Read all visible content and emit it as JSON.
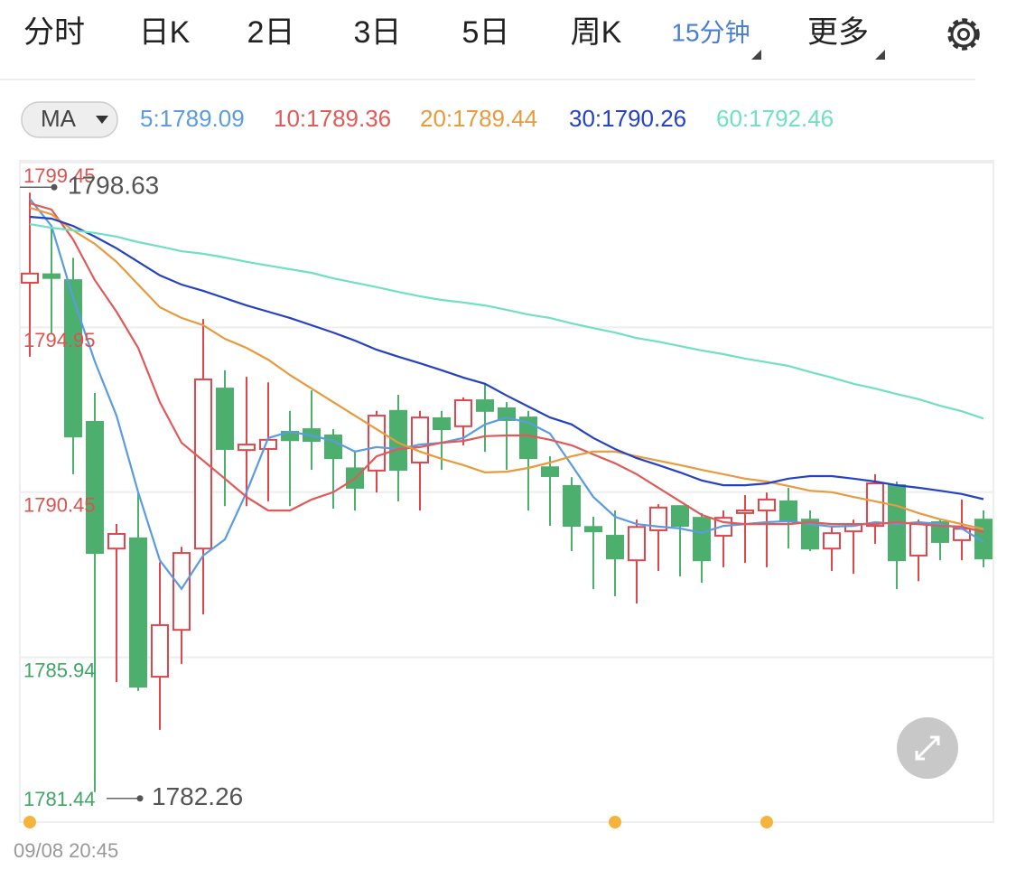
{
  "tabs": [
    "分时",
    "日K",
    "2日",
    "3日",
    "5日",
    "周K",
    "15分钟",
    "更多"
  ],
  "active_tab": 6,
  "indicator": "MA",
  "chart_data": {
    "type": "candlestick",
    "ylim": [
      1781.44,
      1799.45
    ],
    "yticks": [
      1799.45,
      1794.95,
      1790.45,
      1785.94,
      1781.44
    ],
    "ytick_colors": [
      "#d9534f",
      "#d9534f",
      "#d9534f",
      "#3fa564",
      "#3fa564"
    ],
    "grid": true,
    "up_color": "#e0464c",
    "down_color": "#4caf6e",
    "open": [
      1796.17,
      1796.4,
      1796.24,
      1792.37,
      1788.91,
      1789.19,
      1785.41,
      1786.69,
      1788.91,
      1793.28,
      1791.6,
      1791.63,
      1792.1,
      1792.17,
      1792.0,
      1791.1,
      1791.04,
      1792.67,
      1791.26,
      1792.47,
      1792.25,
      1792.96,
      1792.74,
      1792.49,
      1791.13,
      1790.62,
      1789.5,
      1789.26,
      1788.59,
      1789.41,
      1790.07,
      1789.75,
      1789.26,
      1789.88,
      1789.95,
      1790.2,
      1789.7,
      1788.91,
      1789.38,
      1789.53,
      1790.64,
      1788.72,
      1789.63,
      1789.14,
      1789.7
    ],
    "high": [
      1798.63,
      1797.7,
      1796.85,
      1793.16,
      1789.58,
      1790.44,
      1788.54,
      1788.96,
      1795.18,
      1793.78,
      1793.6,
      1793.45,
      1792.67,
      1793.23,
      1792.17,
      1791.55,
      1792.67,
      1793.11,
      1792.67,
      1792.67,
      1793.04,
      1793.4,
      1792.91,
      1792.67,
      1791.43,
      1790.86,
      1789.78,
      1789.95,
      1789.7,
      1790.12,
      1790.07,
      1789.88,
      1789.95,
      1790.37,
      1790.44,
      1790.57,
      1789.95,
      1789.5,
      1789.7,
      1790.94,
      1790.74,
      1789.7,
      1789.7,
      1790.25,
      1789.95
    ],
    "low": [
      1794.15,
      1794.8,
      1790.94,
      1782.26,
      1785.26,
      1785.02,
      1783.96,
      1785.76,
      1787.11,
      1790.07,
      1790.07,
      1790.2,
      1790.07,
      1791.06,
      1790.0,
      1789.95,
      1790.44,
      1790.2,
      1789.95,
      1791.06,
      1791.73,
      1791.55,
      1791.06,
      1789.95,
      1789.53,
      1788.84,
      1787.8,
      1787.61,
      1787.41,
      1788.3,
      1788.15,
      1787.98,
      1788.4,
      1788.52,
      1788.4,
      1788.91,
      1788.84,
      1788.3,
      1788.22,
      1789.04,
      1787.8,
      1788.02,
      1788.59,
      1788.59,
      1788.4
    ],
    "close": [
      1796.42,
      1796.3,
      1791.97,
      1788.79,
      1789.31,
      1785.14,
      1786.82,
      1788.79,
      1793.53,
      1791.63,
      1791.75,
      1791.88,
      1791.87,
      1791.85,
      1791.38,
      1790.57,
      1792.54,
      1791.06,
      1792.49,
      1792.17,
      1792.96,
      1792.67,
      1792.42,
      1791.38,
      1790.89,
      1789.53,
      1789.38,
      1788.64,
      1789.5,
      1790.03,
      1789.53,
      1788.59,
      1789.75,
      1789.95,
      1790.25,
      1789.65,
      1788.91,
      1789.33,
      1789.58,
      1790.69,
      1788.59,
      1789.58,
      1789.09,
      1789.45,
      1788.64
    ],
    "series": [
      {
        "name": "5:1789.09",
        "color": "#5b9be0",
        "values": [
          1798.46,
          1797.72,
          1795.75,
          1794.02,
          1792.54,
          1790.45,
          1788.59,
          1787.81,
          1788.72,
          1789.16,
          1790.45,
          1791.93,
          1792.1,
          1792.0,
          1791.85,
          1791.56,
          1791.68,
          1791.63,
          1791.75,
          1791.8,
          1791.93,
          1792.3,
          1792.49,
          1792.35,
          1792.05,
          1791.19,
          1790.32,
          1789.78,
          1789.58,
          1789.51,
          1789.46,
          1789.34,
          1789.53,
          1789.58,
          1789.63,
          1789.66,
          1789.58,
          1789.51,
          1789.53,
          1789.63,
          1789.58,
          1789.63,
          1789.58,
          1789.46,
          1789.09
        ]
      },
      {
        "name": "10:1789.36",
        "color": "#e05a5a",
        "values": [
          1798.34,
          1798.17,
          1797.35,
          1796.24,
          1795.38,
          1794.39,
          1792.91,
          1791.8,
          1791.31,
          1790.82,
          1790.32,
          1789.95,
          1789.95,
          1790.25,
          1790.45,
          1790.82,
          1791.43,
          1791.63,
          1791.68,
          1791.8,
          1791.85,
          1791.98,
          1792.0,
          1792.0,
          1791.88,
          1791.73,
          1791.48,
          1791.24,
          1790.94,
          1790.57,
          1790.2,
          1789.83,
          1789.63,
          1789.58,
          1789.58,
          1789.58,
          1789.63,
          1789.58,
          1789.58,
          1789.58,
          1789.63,
          1789.58,
          1789.53,
          1789.51,
          1789.36
        ]
      },
      {
        "name": "20:1789.44",
        "color": "#e89a3c",
        "values": [
          1798.22,
          1798.04,
          1797.6,
          1797.23,
          1796.74,
          1796.12,
          1795.5,
          1795.21,
          1795.01,
          1794.64,
          1794.39,
          1794.07,
          1793.65,
          1793.28,
          1792.91,
          1792.54,
          1792.17,
          1791.8,
          1791.56,
          1791.36,
          1791.19,
          1790.99,
          1791.01,
          1791.11,
          1791.26,
          1791.43,
          1791.56,
          1791.56,
          1791.43,
          1791.31,
          1791.19,
          1791.06,
          1790.94,
          1790.82,
          1790.74,
          1790.62,
          1790.49,
          1790.45,
          1790.32,
          1790.2,
          1790.08,
          1789.88,
          1789.71,
          1789.58,
          1789.44
        ]
      },
      {
        "name": "30:1790.26",
        "color": "#2541c4",
        "values": [
          1797.97,
          1797.92,
          1797.72,
          1797.43,
          1797.11,
          1796.74,
          1796.37,
          1796.12,
          1795.95,
          1795.75,
          1795.55,
          1795.38,
          1795.21,
          1795.01,
          1794.81,
          1794.59,
          1794.34,
          1794.15,
          1793.97,
          1793.78,
          1793.58,
          1793.41,
          1793.09,
          1792.79,
          1792.49,
          1792.3,
          1791.93,
          1791.63,
          1791.38,
          1791.19,
          1790.99,
          1790.77,
          1790.64,
          1790.64,
          1790.69,
          1790.82,
          1790.89,
          1790.89,
          1790.82,
          1790.74,
          1790.64,
          1790.57,
          1790.49,
          1790.4,
          1790.26
        ]
      },
      {
        "name": "60:1792.46",
        "color": "#6fe0c2",
        "values": [
          1797.77,
          1797.67,
          1797.6,
          1797.53,
          1797.43,
          1797.28,
          1797.16,
          1797.03,
          1796.96,
          1796.86,
          1796.74,
          1796.64,
          1796.54,
          1796.44,
          1796.29,
          1796.17,
          1796.05,
          1795.92,
          1795.8,
          1795.7,
          1795.63,
          1795.55,
          1795.43,
          1795.3,
          1795.21,
          1795.06,
          1794.93,
          1794.81,
          1794.66,
          1794.56,
          1794.44,
          1794.32,
          1794.22,
          1794.1,
          1794.0,
          1793.9,
          1793.73,
          1793.58,
          1793.41,
          1793.28,
          1793.13,
          1792.99,
          1792.81,
          1792.66,
          1792.46
        ]
      }
    ],
    "max_label": 1798.63,
    "min_label": 1782.26,
    "x_label": "09/08 20:45"
  }
}
